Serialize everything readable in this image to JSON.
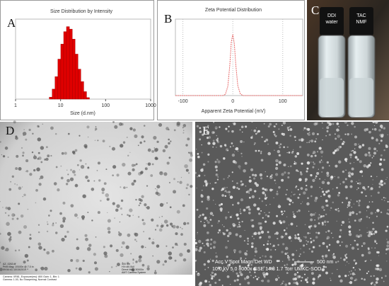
{
  "chart_data": [
    {
      "type": "histogram",
      "title": "Size Distribution by Intensity",
      "xlabel": "Size (d.nm)",
      "xscale": "log",
      "xlim": [
        1,
        1000
      ],
      "xticks": [
        1,
        10,
        100,
        1000
      ],
      "ylim": [
        0,
        16
      ],
      "bins": [
        5.6,
        6.5,
        7.5,
        8.7,
        10.1,
        11.7,
        13.5,
        15.7,
        18.2,
        21.0,
        24.4,
        28.2,
        32.7,
        37.8,
        43.8
      ],
      "values": [
        0.4,
        2,
        4.5,
        8,
        11,
        13.5,
        14.5,
        14,
        12,
        9,
        6,
        3.5,
        1.5,
        0.3
      ],
      "color": "#e00000"
    },
    {
      "type": "line",
      "title": "Zeta Potential Distribution",
      "xlabel": "Apparent Zeta Potential (mV)",
      "xlim": [
        -115,
        140
      ],
      "xticks": [
        -100,
        0,
        100
      ],
      "ylim": [
        0,
        1.25
      ],
      "grid": true,
      "x": [
        -115,
        -30,
        -20,
        -15,
        -10,
        -6,
        -3,
        0,
        3,
        6,
        10,
        15,
        20,
        30,
        140
      ],
      "series": [
        {
          "color": "#e86a6a",
          "values": [
            0,
            0,
            0,
            0.02,
            0.15,
            0.5,
            0.88,
            1,
            0.85,
            0.5,
            0.16,
            0.03,
            0,
            0,
            0
          ]
        }
      ]
    }
  ],
  "panels": {
    "a": "A",
    "b": "B",
    "c": "C",
    "d": "D",
    "e": "E"
  },
  "vials": [
    "DDI\nwater",
    "TAC\nNMF"
  ],
  "tem_meta": [
    "AZ_0263.tif",
    "Print Mag: 19100x @ 7.0 in",
    "09:54:41 10/15/2019",
    "Camera: XR81, Exposure(ms): 800 Gain: 1, Bin: 1",
    "Gamma: 1.00, No Sharpening, Normal Contrast"
  ],
  "tem_meta_right": [
    "400 nm",
    "HV=80.0kV",
    "Direct Mag: 30000x",
    "AMT Camera System"
  ],
  "sem_meta": [
    "Acc.V  Spot Magn    Det  WD",
    "10.0 kV 5.0   8000x   GSE 14.8  1.7 Torr UMKC-SOD",
    "500 nm"
  ]
}
